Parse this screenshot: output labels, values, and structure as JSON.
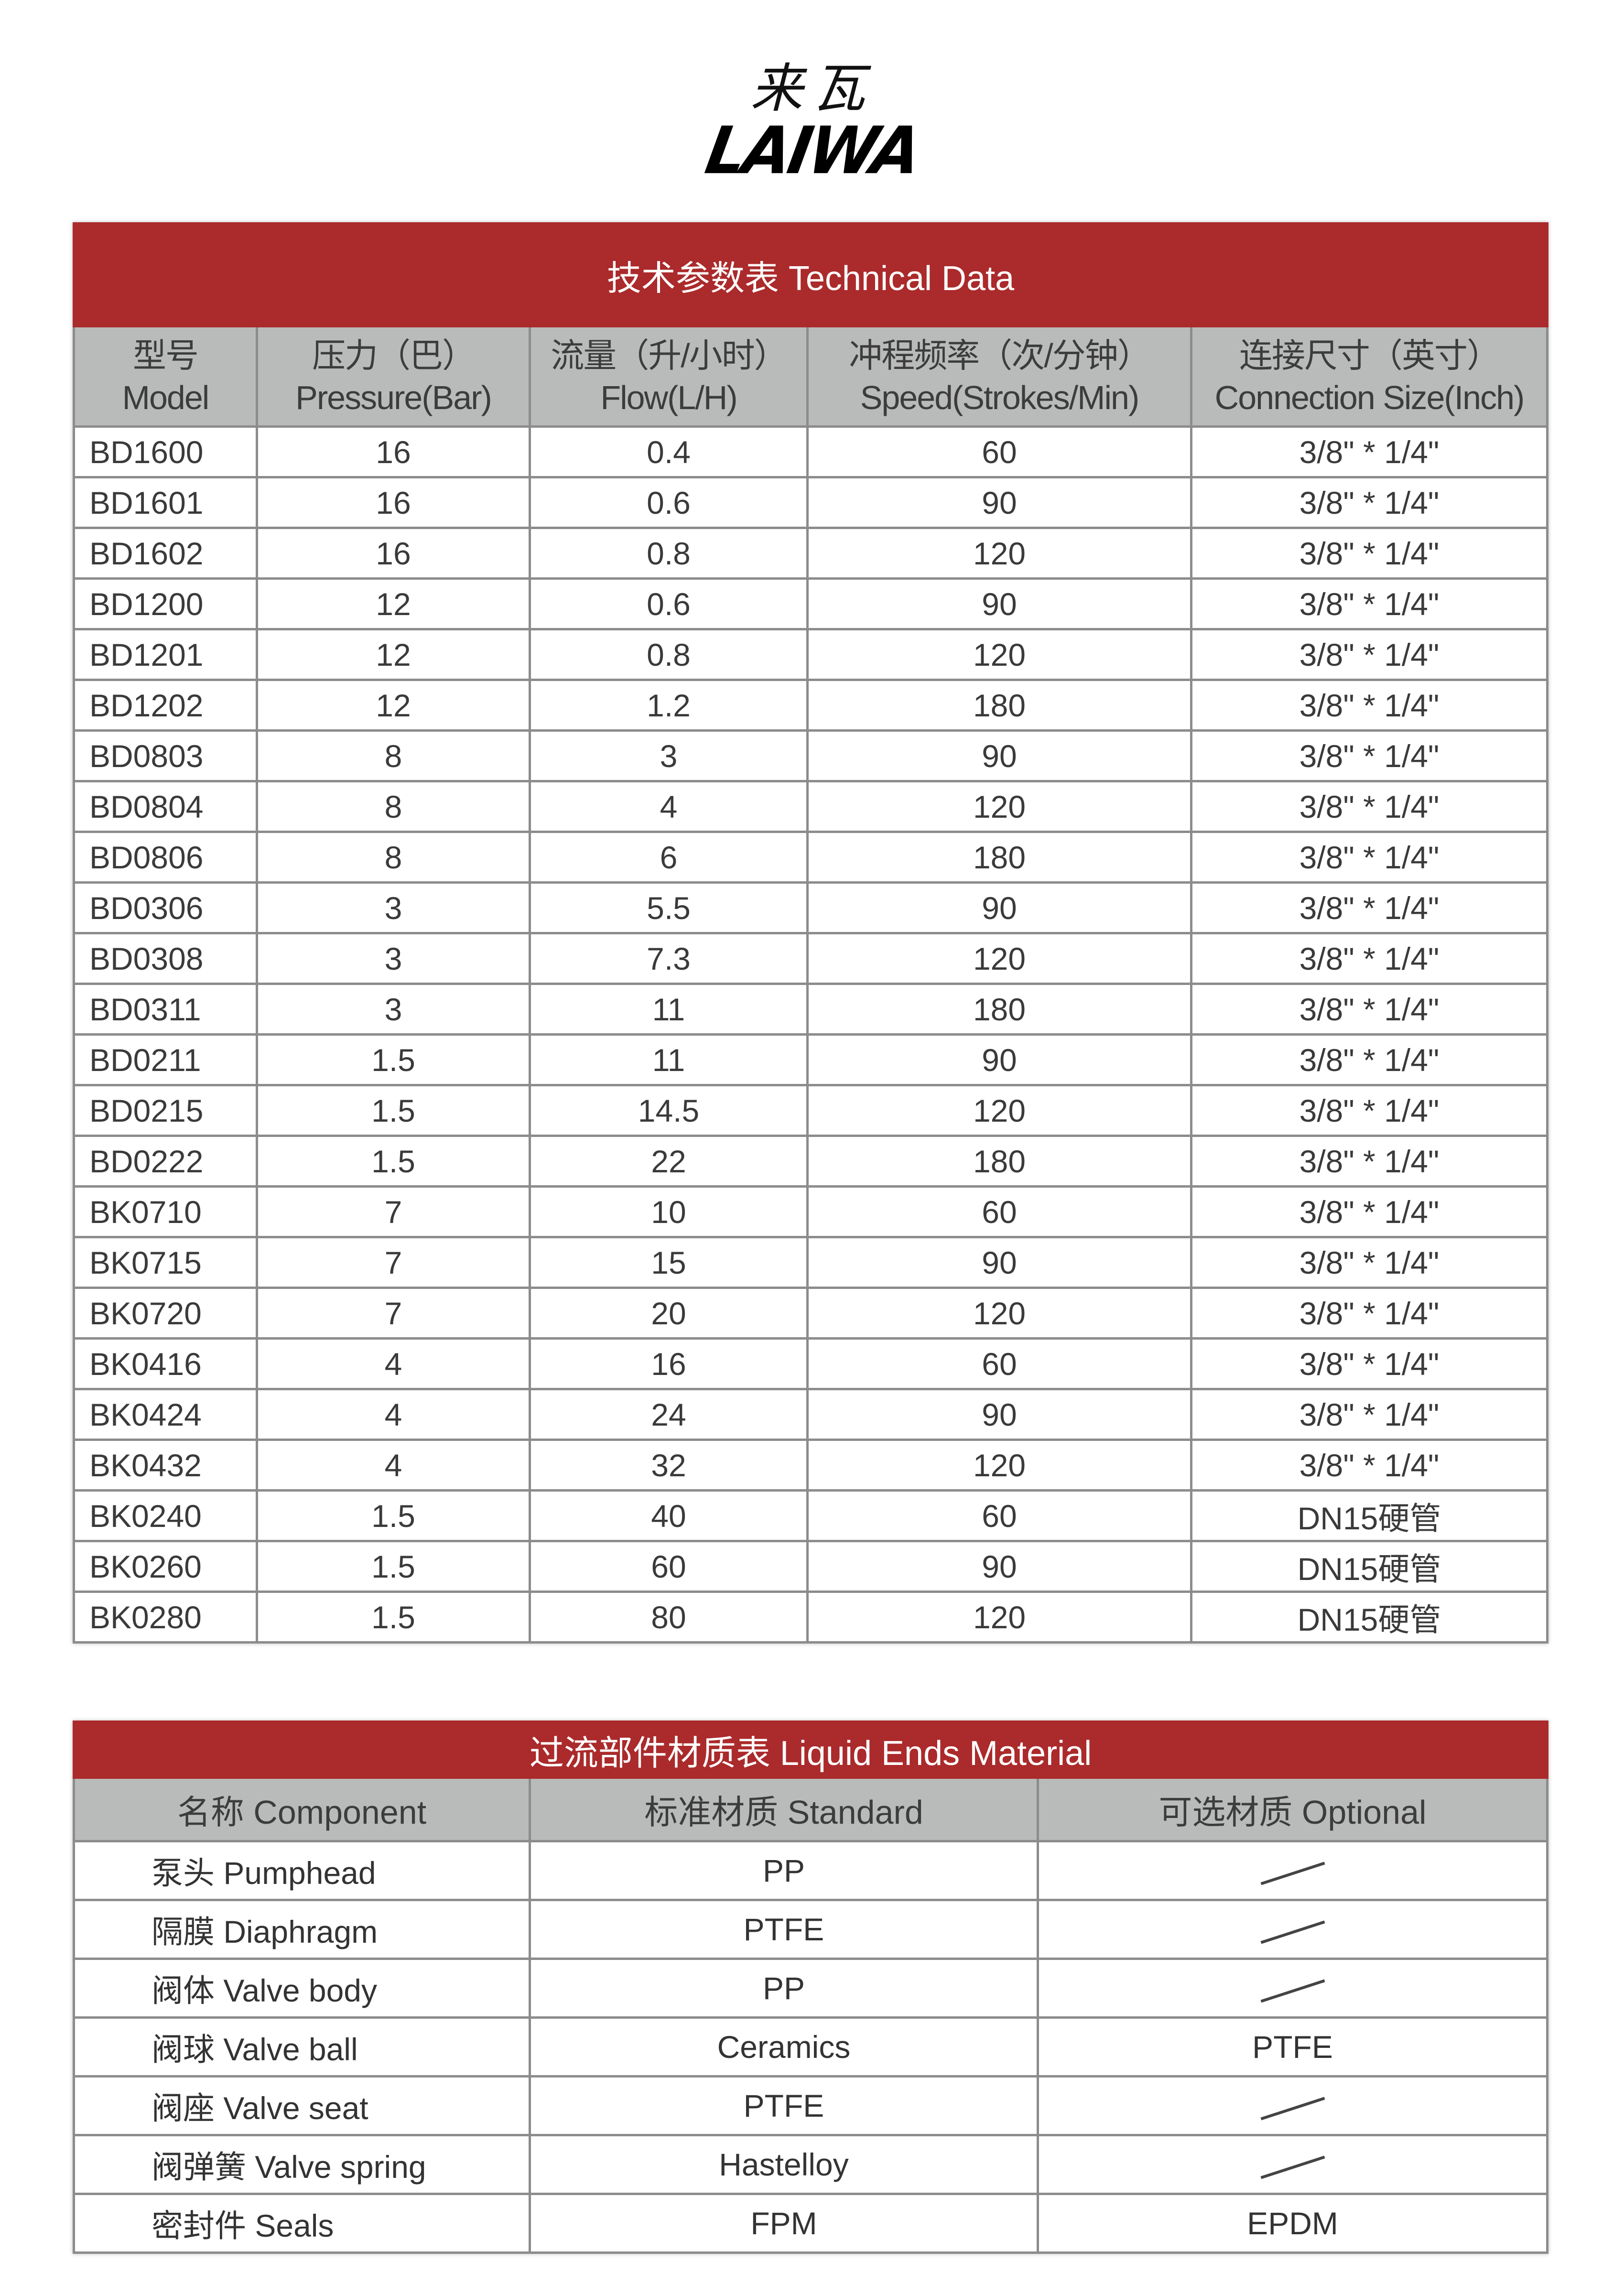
{
  "logo": {
    "cn": "来瓦",
    "en": "LAIWA"
  },
  "technical_data": {
    "title": "技术参数表   Technical Data",
    "headers": [
      {
        "cn": "型号",
        "en": "Model"
      },
      {
        "cn": "压力（巴）",
        "en": "Pressure(Bar)"
      },
      {
        "cn": "流量（升/小时）",
        "en": "Flow(L/H)"
      },
      {
        "cn": "冲程频率（次/分钟）",
        "en": "Speed(Strokes/Min)"
      },
      {
        "cn": "连接尺寸（英寸）",
        "en": "Connection Size(Inch)"
      }
    ],
    "rows": [
      [
        "BD1600",
        "16",
        "0.4",
        "60",
        "3/8\" * 1/4\""
      ],
      [
        "BD1601",
        "16",
        "0.6",
        "90",
        "3/8\" * 1/4\""
      ],
      [
        "BD1602",
        "16",
        "0.8",
        "120",
        "3/8\" * 1/4\""
      ],
      [
        "BD1200",
        "12",
        "0.6",
        "90",
        "3/8\" * 1/4\""
      ],
      [
        "BD1201",
        "12",
        "0.8",
        "120",
        "3/8\" * 1/4\""
      ],
      [
        "BD1202",
        "12",
        "1.2",
        "180",
        "3/8\" * 1/4\""
      ],
      [
        "BD0803",
        "8",
        "3",
        "90",
        "3/8\" * 1/4\""
      ],
      [
        "BD0804",
        "8",
        "4",
        "120",
        "3/8\" * 1/4\""
      ],
      [
        "BD0806",
        "8",
        "6",
        "180",
        "3/8\" * 1/4\""
      ],
      [
        "BD0306",
        "3",
        "5.5",
        "90",
        "3/8\" * 1/4\""
      ],
      [
        "BD0308",
        "3",
        "7.3",
        "120",
        "3/8\" * 1/4\""
      ],
      [
        "BD0311",
        "3",
        "11",
        "180",
        "3/8\" * 1/4\""
      ],
      [
        "BD0211",
        "1.5",
        "11",
        "90",
        "3/8\" * 1/4\""
      ],
      [
        "BD0215",
        "1.5",
        "14.5",
        "120",
        "3/8\" * 1/4\""
      ],
      [
        "BD0222",
        "1.5",
        "22",
        "180",
        "3/8\" * 1/4\""
      ],
      [
        "BK0710",
        "7",
        "10",
        "60",
        "3/8\" * 1/4\""
      ],
      [
        "BK0715",
        "7",
        "15",
        "90",
        "3/8\" * 1/4\""
      ],
      [
        "BK0720",
        "7",
        "20",
        "120",
        "3/8\" * 1/4\""
      ],
      [
        "BK0416",
        "4",
        "16",
        "60",
        "3/8\" * 1/4\""
      ],
      [
        "BK0424",
        "4",
        "24",
        "90",
        "3/8\" * 1/4\""
      ],
      [
        "BK0432",
        "4",
        "32",
        "120",
        "3/8\" * 1/4\""
      ],
      [
        "BK0240",
        "1.5",
        "40",
        "60",
        "DN15硬管"
      ],
      [
        "BK0260",
        "1.5",
        "60",
        "90",
        "DN15硬管"
      ],
      [
        "BK0280",
        "1.5",
        "80",
        "120",
        "DN15硬管"
      ]
    ]
  },
  "liquid_ends": {
    "title": "过流部件材质表 Liquid Ends Material",
    "headers": [
      "名称 Component",
      "标准材质 Standard",
      "可选材质 Optional"
    ],
    "rows": [
      [
        "泵头 Pumphead",
        "PP",
        "/"
      ],
      [
        "隔膜 Diaphragm",
        "PTFE",
        "/"
      ],
      [
        "阀体 Valve body",
        "PP",
        "/"
      ],
      [
        "阀球 Valve ball",
        "Ceramics",
        "PTFE"
      ],
      [
        "阀座 Valve seat",
        "PTFE",
        "/"
      ],
      [
        "阀弹簧 Valve spring",
        "Hastelloy",
        "/"
      ],
      [
        "密封件 Seals",
        "FPM",
        "EPDM"
      ]
    ]
  },
  "colors": {
    "title_bar": "#ab2a2b",
    "header_bar": "#b9bbba"
  }
}
